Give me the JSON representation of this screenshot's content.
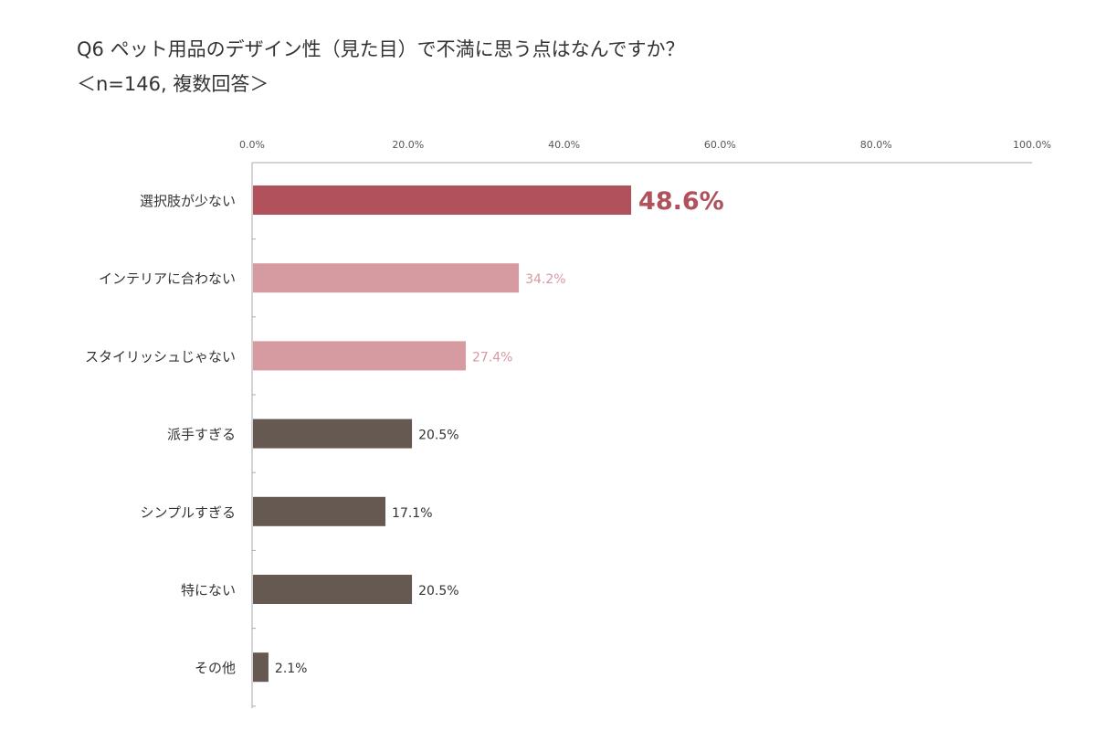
{
  "title": "Q6 ペット用品のデザイン性（見た目）で不満に思う点はなんですか？",
  "subtitle": "＜n=146, 複数回答＞",
  "colors": {
    "highlight": "#b0515c",
    "secondary": "#d69aa1",
    "default": "#655952",
    "axis": "#aaaaaa"
  },
  "chart_data": {
    "type": "bar",
    "orientation": "horizontal",
    "title": "Q6 ペット用品のデザイン性（見た目）で不満に思う点はなんですか？",
    "subtitle": "＜n=146, 複数回答＞",
    "categories": [
      "選択肢が少ない",
      "インテリアに合わない",
      "スタイリッシュじゃない",
      "派手すぎる",
      "シンプルすぎる",
      "特にない",
      "その他"
    ],
    "values": [
      48.6,
      34.2,
      27.4,
      20.5,
      17.1,
      20.5,
      2.1
    ],
    "value_labels": [
      "48.6%",
      "34.2%",
      "27.4%",
      "20.5%",
      "17.1%",
      "20.5%",
      "2.1%"
    ],
    "bar_colors": [
      "#b0515c",
      "#d69aa1",
      "#d69aa1",
      "#655952",
      "#655952",
      "#655952",
      "#655952"
    ],
    "xlim": [
      0,
      100
    ],
    "xticks": [
      0,
      20,
      40,
      60,
      80,
      100
    ],
    "xtick_labels": [
      "0.0%",
      "20.0%",
      "40.0%",
      "60.0%",
      "80.0%",
      "100.0%"
    ],
    "xaxis_position": "top",
    "grid": false,
    "legend": false
  }
}
